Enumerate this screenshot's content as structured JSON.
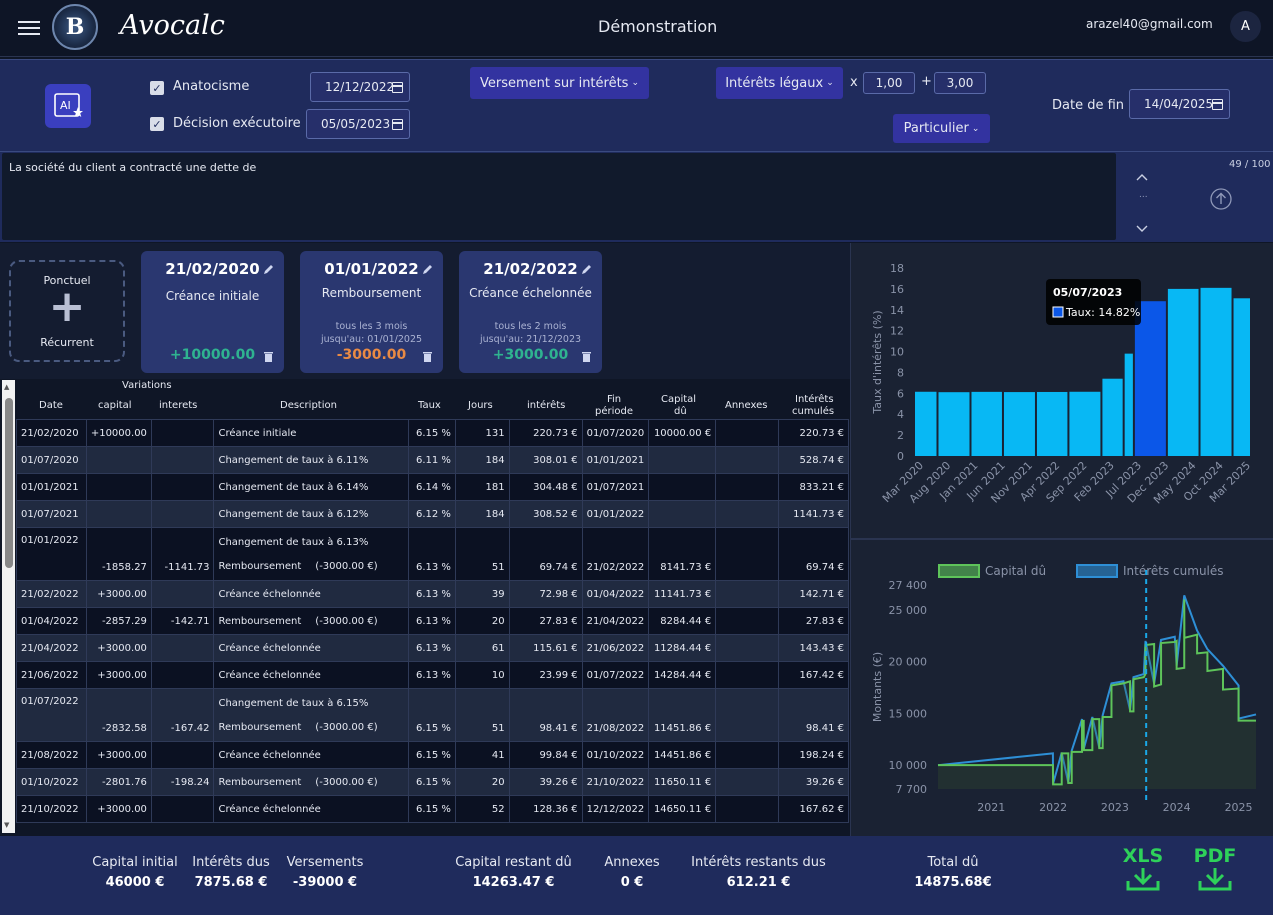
{
  "app": {
    "brand": "Avocalc",
    "page_title": "Démonstration",
    "email": "arazel40@gmail.com",
    "avatar_initial": "A",
    "logo_letter": "B"
  },
  "controls": {
    "ai_label": "AI",
    "anatocisme": {
      "label": "Anatocisme",
      "checked": true,
      "date": "12/12/2022"
    },
    "decision": {
      "label": "Décision exécutoire",
      "checked": true,
      "date": "05/05/2023"
    },
    "versement_dropdown": "Versement sur intérêts",
    "interets_dropdown": "Intérêts légaux",
    "multiply_sign": "x",
    "multiplier": "1,00",
    "plus_sign": "+",
    "addend": "3,00",
    "particulier_dropdown": "Particulier",
    "end_date_label": "Date de fin",
    "end_date": "14/04/2025"
  },
  "prompt": {
    "text": "La société du client a contracté une dette de",
    "counter": "49 / 100",
    "dots": "..."
  },
  "cards": {
    "add": {
      "top": "Ponctuel",
      "plus": "+",
      "bottom": "Récurrent"
    },
    "items": [
      {
        "date": "21/02/2020",
        "title": "Créance initiale",
        "line1": "",
        "line2": "",
        "amount": "+10000.00",
        "amount_color": "#2fb390"
      },
      {
        "date": "01/01/2022",
        "title": "Remboursement",
        "line1": "tous les  3  mois",
        "line2": "jusqu'au: 01/01/2025",
        "amount": "-3000.00",
        "amount_color": "#e98a44"
      },
      {
        "date": "21/02/2022",
        "title": "Créance échelonnée",
        "line1": "tous les  2  mois",
        "line2": "jusqu'au: 21/12/2023",
        "amount": "+3000.00",
        "amount_color": "#2fb390"
      }
    ]
  },
  "table": {
    "headers": {
      "variations": "Variations",
      "date": "Date",
      "capital": "capital",
      "interets": "interets",
      "description": "Description",
      "taux": "Taux",
      "jours": "Jours",
      "interets_amt": "intérêts",
      "fin": "Fin",
      "periode": "période",
      "capital_du": "Capital",
      "du": "dû",
      "annexes": "Annexes",
      "cumules1": "Intérêts",
      "cumules2": "cumulés"
    },
    "rows": [
      {
        "date": "21/02/2020",
        "cap": "+10000.00",
        "int": "",
        "desc": "Créance initiale",
        "desc2": "",
        "amt2": "",
        "taux": "6.15 %",
        "jours": "131",
        "interets": "220.73 €",
        "fin": "01/07/2020",
        "capdu": "10000.00 €",
        "annexes": "",
        "cumul": "220.73 €",
        "shade": "dk"
      },
      {
        "date": "01/07/2020",
        "cap": "",
        "int": "",
        "desc": "Changement de taux à 6.11%",
        "desc2": "",
        "amt2": "",
        "taux": "6.11 %",
        "jours": "184",
        "interets": "308.01 €",
        "fin": "01/01/2021",
        "capdu": "",
        "annexes": "",
        "cumul": "528.74 €",
        "shade": "lt"
      },
      {
        "date": "01/01/2021",
        "cap": "",
        "int": "",
        "desc": "Changement de taux à 6.14%",
        "desc2": "",
        "amt2": "",
        "taux": "6.14 %",
        "jours": "181",
        "interets": "304.48 €",
        "fin": "01/07/2021",
        "capdu": "",
        "annexes": "",
        "cumul": "833.21 €",
        "shade": "dk"
      },
      {
        "date": "01/07/2021",
        "cap": "",
        "int": "",
        "desc": "Changement de taux à 6.12%",
        "desc2": "",
        "amt2": "",
        "taux": "6.12 %",
        "jours": "184",
        "interets": "308.52 €",
        "fin": "01/01/2022",
        "capdu": "",
        "annexes": "",
        "cumul": "1141.73 €",
        "shade": "lt"
      },
      {
        "date": "01/01/2022",
        "cap": "-1858.27",
        "int": "-1141.73",
        "desc": "Changement de taux à 6.13%",
        "desc2": "Remboursement",
        "amt2": "(-3000.00 €)",
        "taux": "6.13 %",
        "jours": "51",
        "interets": "69.74 €",
        "fin": "21/02/2022",
        "capdu": "8141.73 €",
        "annexes": "",
        "cumul": "69.74 €",
        "shade": "dk"
      },
      {
        "date": "21/02/2022",
        "cap": "+3000.00",
        "int": "",
        "desc": "Créance échelonnée",
        "desc2": "",
        "amt2": "",
        "taux": "6.13 %",
        "jours": "39",
        "interets": "72.98 €",
        "fin": "01/04/2022",
        "capdu": "11141.73 €",
        "annexes": "",
        "cumul": "142.71 €",
        "shade": "lt"
      },
      {
        "date": "01/04/2022",
        "cap": "-2857.29",
        "int": "-142.71",
        "desc": "Remboursement",
        "desc2": "",
        "amt2": "(-3000.00 €)",
        "taux": "6.13 %",
        "jours": "20",
        "interets": "27.83 €",
        "fin": "21/04/2022",
        "capdu": "8284.44 €",
        "annexes": "",
        "cumul": "27.83 €",
        "shade": "dk"
      },
      {
        "date": "21/04/2022",
        "cap": "+3000.00",
        "int": "",
        "desc": "Créance échelonnée",
        "desc2": "",
        "amt2": "",
        "taux": "6.13 %",
        "jours": "61",
        "interets": "115.61 €",
        "fin": "21/06/2022",
        "capdu": "11284.44 €",
        "annexes": "",
        "cumul": "143.43 €",
        "shade": "lt"
      },
      {
        "date": "21/06/2022",
        "cap": "+3000.00",
        "int": "",
        "desc": "Créance échelonnée",
        "desc2": "",
        "amt2": "",
        "taux": "6.13 %",
        "jours": "10",
        "interets": "23.99 €",
        "fin": "01/07/2022",
        "capdu": "14284.44 €",
        "annexes": "",
        "cumul": "167.42 €",
        "shade": "dk"
      },
      {
        "date": "01/07/2022",
        "cap": "-2832.58",
        "int": "-167.42",
        "desc": "Changement de taux à 6.15%",
        "desc2": "Remboursement",
        "amt2": "(-3000.00 €)",
        "taux": "6.15 %",
        "jours": "51",
        "interets": "98.41 €",
        "fin": "21/08/2022",
        "capdu": "11451.86 €",
        "annexes": "",
        "cumul": "98.41 €",
        "shade": "lt"
      },
      {
        "date": "21/08/2022",
        "cap": "+3000.00",
        "int": "",
        "desc": "Créance échelonnée",
        "desc2": "",
        "amt2": "",
        "taux": "6.15 %",
        "jours": "41",
        "interets": "99.84 €",
        "fin": "01/10/2022",
        "capdu": "14451.86 €",
        "annexes": "",
        "cumul": "198.24 €",
        "shade": "dk"
      },
      {
        "date": "01/10/2022",
        "cap": "-2801.76",
        "int": "-198.24",
        "desc": "Remboursement",
        "desc2": "",
        "amt2": "(-3000.00 €)",
        "taux": "6.15 %",
        "jours": "20",
        "interets": "39.26 €",
        "fin": "21/10/2022",
        "capdu": "11650.11 €",
        "annexes": "",
        "cumul": "39.26 €",
        "shade": "lt"
      },
      {
        "date": "21/10/2022",
        "cap": "+3000.00",
        "int": "",
        "desc": "Créance échelonnée",
        "desc2": "",
        "amt2": "",
        "taux": "6.15 %",
        "jours": "52",
        "interets": "128.36 €",
        "fin": "12/12/2022",
        "capdu": "14650.11 €",
        "annexes": "",
        "cumul": "167.62 €",
        "shade": "dk"
      }
    ]
  },
  "chart_data": [
    {
      "type": "bar",
      "title": "",
      "ylabel": "Taux d'intérêts (%)",
      "ylim": [
        0,
        18
      ],
      "yticks": [
        0,
        2,
        4,
        6,
        8,
        10,
        12,
        14,
        16,
        18
      ],
      "categories": [
        "Mar 2020",
        "Aug 2020",
        "Jan 2021",
        "Jun 2021",
        "Nov 2021",
        "Apr 2022",
        "Sep 2022",
        "Feb 2023",
        "Jul 2023",
        "Dec 2023",
        "May 2024",
        "Oct 2024",
        "Mar 2025"
      ],
      "bars": [
        {
          "start": "2020-02-21",
          "end": "2020-07-01",
          "value": 6.15
        },
        {
          "start": "2020-07-01",
          "end": "2021-01-01",
          "value": 6.11
        },
        {
          "start": "2021-01-01",
          "end": "2021-07-01",
          "value": 6.14
        },
        {
          "start": "2021-07-01",
          "end": "2022-01-01",
          "value": 6.12
        },
        {
          "start": "2022-01-01",
          "end": "2022-07-01",
          "value": 6.13
        },
        {
          "start": "2022-07-01",
          "end": "2023-01-01",
          "value": 6.15
        },
        {
          "start": "2023-01-01",
          "end": "2023-05-05",
          "value": 7.4
        },
        {
          "start": "2023-05-05",
          "end": "2023-07-01",
          "value": 9.8
        },
        {
          "start": "2023-07-01",
          "end": "2024-01-01",
          "value": 14.82
        },
        {
          "start": "2024-01-01",
          "end": "2024-07-01",
          "value": 16.0
        },
        {
          "start": "2024-07-01",
          "end": "2025-01-01",
          "value": 16.1
        },
        {
          "start": "2025-01-01",
          "end": "2025-04-14",
          "value": 15.1
        }
      ],
      "highlight_index": 8,
      "tooltip": {
        "title": "05/07/2023",
        "label": "Taux: 14.82%"
      },
      "color": "#08b8f4",
      "highlight_color": "#0b57e8"
    },
    {
      "type": "line",
      "ylabel": "Montants (€)",
      "ylim": [
        7700,
        27400
      ],
      "yticks": [
        "7 700",
        "10 000",
        "15 000",
        "20 000",
        "25 000",
        "27 400"
      ],
      "xticks": [
        "2021",
        "2022",
        "2023",
        "2024",
        "2025"
      ],
      "legend": "top",
      "vline": "2023-07-05",
      "series": [
        {
          "name": "Capital dû",
          "color": "#5ec45a",
          "points": [
            [
              "2020-02-21",
              10000
            ],
            [
              "2021-12-31",
              10000
            ],
            [
              "2022-01-01",
              8141
            ],
            [
              "2022-02-21",
              8141
            ],
            [
              "2022-02-21",
              11141
            ],
            [
              "2022-04-01",
              11141
            ],
            [
              "2022-04-01",
              8284
            ],
            [
              "2022-04-21",
              8284
            ],
            [
              "2022-04-21",
              11284
            ],
            [
              "2022-06-21",
              11284
            ],
            [
              "2022-06-21",
              14284
            ],
            [
              "2022-07-01",
              14284
            ],
            [
              "2022-07-01",
              11451
            ],
            [
              "2022-08-21",
              11451
            ],
            [
              "2022-08-21",
              14451
            ],
            [
              "2022-10-01",
              14451
            ],
            [
              "2022-10-01",
              11650
            ],
            [
              "2022-10-21",
              11650
            ],
            [
              "2022-10-21",
              14650
            ],
            [
              "2022-12-12",
              14650
            ],
            [
              "2022-12-12",
              17700
            ],
            [
              "2023-02-21",
              17900
            ],
            [
              "2023-04-01",
              18100
            ],
            [
              "2023-04-01",
              15200
            ],
            [
              "2023-04-21",
              15200
            ],
            [
              "2023-04-21",
              18300
            ],
            [
              "2023-06-21",
              18500
            ],
            [
              "2023-07-01",
              18800
            ],
            [
              "2023-07-01",
              21600
            ],
            [
              "2023-08-21",
              21700
            ],
            [
              "2023-08-21",
              17600
            ],
            [
              "2023-10-01",
              17800
            ],
            [
              "2023-10-01",
              21800
            ],
            [
              "2023-12-21",
              21900
            ],
            [
              "2024-01-01",
              22000
            ],
            [
              "2024-01-01",
              19300
            ],
            [
              "2024-02-15",
              19400
            ],
            [
              "2024-02-15",
              26000
            ],
            [
              "2024-02-16",
              22300
            ],
            [
              "2024-05-01",
              22600
            ],
            [
              "2024-05-01",
              20800
            ],
            [
              "2024-07-01",
              20900
            ],
            [
              "2024-07-01",
              19100
            ],
            [
              "2024-10-01",
              19300
            ],
            [
              "2024-10-01",
              17300
            ],
            [
              "2025-01-01",
              17400
            ],
            [
              "2025-01-01",
              14300
            ],
            [
              "2025-04-14",
              14300
            ]
          ]
        },
        {
          "name": "Intérêts cumulés",
          "color": "#2e8fd6",
          "points": [
            [
              "2020-02-21",
              10000
            ],
            [
              "2021-12-31",
              11141
            ],
            [
              "2022-01-01",
              8211
            ],
            [
              "2022-02-21",
              11214
            ],
            [
              "2022-04-01",
              8312
            ],
            [
              "2022-04-21",
              11400
            ],
            [
              "2022-06-21",
              14451
            ],
            [
              "2022-07-01",
              11550
            ],
            [
              "2022-08-21",
              14650
            ],
            [
              "2022-10-01",
              11689
            ],
            [
              "2022-10-21",
              14817
            ],
            [
              "2022-12-12",
              17900
            ],
            [
              "2023-02-21",
              18100
            ],
            [
              "2023-04-01",
              15300
            ],
            [
              "2023-04-21",
              18500
            ],
            [
              "2023-06-21",
              18800
            ],
            [
              "2023-07-01",
              22000
            ],
            [
              "2023-08-21",
              17900
            ],
            [
              "2023-10-01",
              22100
            ],
            [
              "2023-12-21",
              22400
            ],
            [
              "2024-01-01",
              19600
            ],
            [
              "2024-02-15",
              26400
            ],
            [
              "2024-05-01",
              23000
            ],
            [
              "2024-07-01",
              21200
            ],
            [
              "2024-10-01",
              19600
            ],
            [
              "2025-01-01",
              17700
            ],
            [
              "2025-01-01",
              14500
            ],
            [
              "2025-04-14",
              14900
            ]
          ]
        }
      ]
    }
  ],
  "footer": {
    "capital_initial": {
      "label": "Capital initial",
      "value": "46000 €"
    },
    "interets_dus": {
      "label": "Intérêts dus",
      "value": "7875.68 €"
    },
    "versements": {
      "label": "Versements",
      "value": "-39000 €"
    },
    "capital_restant": {
      "label": "Capital restant dû",
      "value": "14263.47 €"
    },
    "annexes": {
      "label": "Annexes",
      "value": "0 €"
    },
    "interets_restants": {
      "label": "Intérêts restants dus",
      "value": "612.21 €"
    },
    "total": {
      "label": "Total dû",
      "value": "14875.68€"
    },
    "xls": "XLS",
    "pdf": "PDF"
  }
}
